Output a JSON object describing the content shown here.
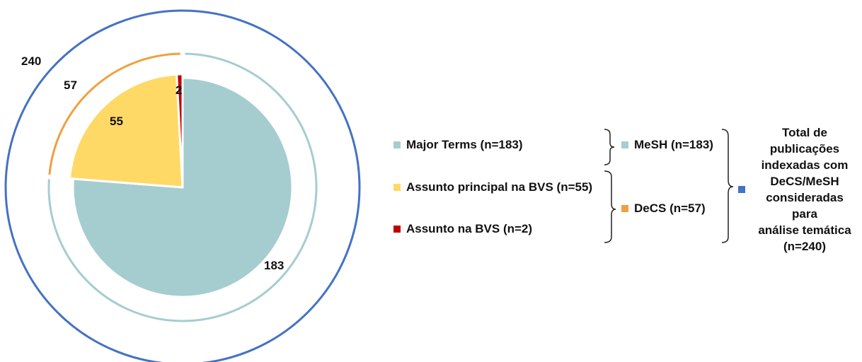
{
  "chart_data": {
    "type": "pie",
    "title": "",
    "rings": {
      "outer": {
        "name": "Total de publicações indexadas com DeCS/MeSH consideradas para análise temática (n=240)",
        "value": 240,
        "label": "240",
        "color": "#4472C4"
      },
      "middle": [
        {
          "name": "MeSH (n=183)",
          "value": 183,
          "color": "#A5CDD0"
        },
        {
          "name": "DeCS (n=57)",
          "value": 57,
          "label": "57",
          "color": "#F0A040"
        }
      ],
      "inner": [
        {
          "name": "Major Terms (n=183)",
          "value": 183,
          "label": "183",
          "color": "#A5CDD0"
        },
        {
          "name": "Assunto principal na BVS (n=55)",
          "value": 55,
          "label": "55",
          "color": "#FFD966"
        },
        {
          "name": "Assunto na BVS (n=2)",
          "value": 2,
          "label": "2",
          "color": "#C00000"
        }
      ]
    },
    "legend": {
      "inner_items": [
        {
          "label": "Major Terms (n=183)",
          "color": "#A5CDD0"
        },
        {
          "label": "Assunto principal na BVS (n=55)",
          "color": "#FFD966"
        },
        {
          "label": "Assunto na BVS (n=2)",
          "color": "#C00000"
        }
      ],
      "middle_items": [
        {
          "label": "MeSH (n=183)",
          "color": "#A5CDD0"
        },
        {
          "label": "DeCS (n=57)",
          "color": "#F0A040"
        }
      ],
      "total": {
        "label": "Total de\npublicações\nindexadas com\nDeCS/MeSH\nconsideradas para\nanálise temática\n(n=240)",
        "color": "#4472C4"
      }
    }
  }
}
